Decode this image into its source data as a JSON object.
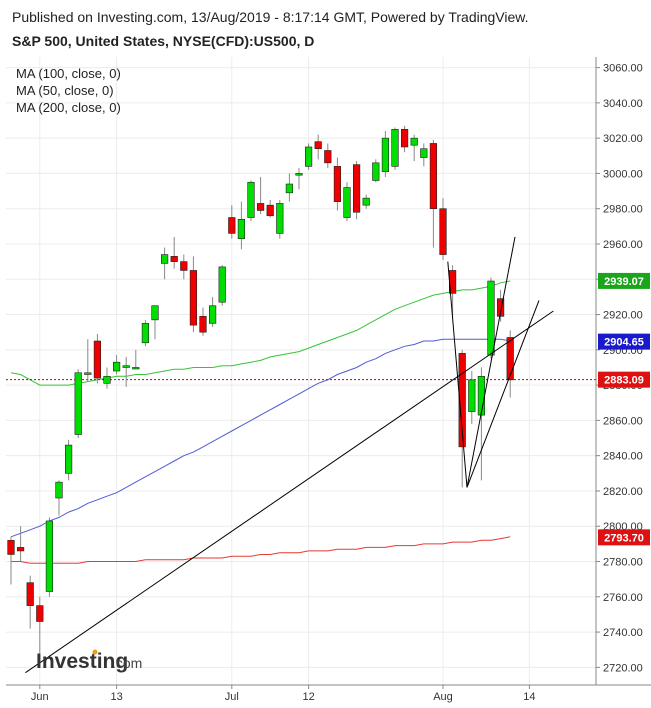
{
  "header": {
    "published": "Published on Investing.com, 13/Aug/2019 - 8:17:14 GMT, Powered by TradingView.",
    "symbol": "S&P 500, United States, NYSE(CFD):US500, D"
  },
  "legend": [
    "MA (100, close, 0)",
    "MA (50, close, 0)",
    "MA (200, close, 0)"
  ],
  "logo": {
    "text_main": "Investing",
    "text_suffix": ".com"
  },
  "chart_data": {
    "type": "candlestick",
    "title": "S&P 500, United States, NYSE(CFD):US500, D",
    "ylim": [
      2710,
      3066
    ],
    "y_ticks": [
      2720,
      2740,
      2760,
      2780,
      2800,
      2820,
      2840,
      2860,
      2880,
      2900,
      2920,
      2940,
      2960,
      2980,
      3000,
      3020,
      3040,
      3060
    ],
    "y_tick_labels": [
      "2720.00",
      "2740.00",
      "2760.00",
      "2780.00",
      "2800.00",
      "2820.00",
      "2840.00",
      "2860.00",
      "2880.00",
      "2900.00",
      "2920.00",
      "2940.00",
      "2960.00",
      "2980.00",
      "3000.00",
      "3020.00",
      "3040.00",
      "3060.00"
    ],
    "x_ticks": [
      {
        "label": "Jun",
        "bar": 3
      },
      {
        "label": "13",
        "bar": 11
      },
      {
        "label": "Jul",
        "bar": 23
      },
      {
        "label": "12",
        "bar": 31
      },
      {
        "label": "Aug",
        "bar": 45
      },
      {
        "label": "14",
        "bar": 54
      }
    ],
    "candles": [
      {
        "o": 2792,
        "h": 2794,
        "l": 2767,
        "c": 2784
      },
      {
        "o": 2788,
        "h": 2800,
        "l": 2780,
        "c": 2786
      },
      {
        "o": 2768,
        "h": 2772,
        "l": 2742,
        "c": 2755
      },
      {
        "o": 2755,
        "h": 2760,
        "l": 2728,
        "c": 2746
      },
      {
        "o": 2763,
        "h": 2805,
        "l": 2760,
        "c": 2803
      },
      {
        "o": 2816,
        "h": 2826,
        "l": 2806,
        "c": 2825
      },
      {
        "o": 2830,
        "h": 2849,
        "l": 2826,
        "c": 2846
      },
      {
        "o": 2852,
        "h": 2889,
        "l": 2850,
        "c": 2887
      },
      {
        "o": 2886,
        "h": 2906,
        "l": 2882,
        "c": 2887
      },
      {
        "o": 2905,
        "h": 2909,
        "l": 2881,
        "c": 2884
      },
      {
        "o": 2881,
        "h": 2890,
        "l": 2878,
        "c": 2885
      },
      {
        "o": 2888,
        "h": 2897,
        "l": 2886,
        "c": 2893
      },
      {
        "o": 2890,
        "h": 2896,
        "l": 2879,
        "c": 2891
      },
      {
        "o": 2890,
        "h": 2900,
        "l": 2889,
        "c": 2890
      },
      {
        "o": 2904,
        "h": 2917,
        "l": 2902,
        "c": 2915
      },
      {
        "o": 2917,
        "h": 2925,
        "l": 2906,
        "c": 2925
      },
      {
        "o": 2949,
        "h": 2958,
        "l": 2940,
        "c": 2954
      },
      {
        "o": 2953,
        "h": 2964,
        "l": 2946,
        "c": 2950
      },
      {
        "o": 2950,
        "h": 2954,
        "l": 2940,
        "c": 2945
      },
      {
        "o": 2945,
        "h": 2953,
        "l": 2910,
        "c": 2914
      },
      {
        "o": 2919,
        "h": 2924,
        "l": 2908,
        "c": 2910
      },
      {
        "o": 2915,
        "h": 2930,
        "l": 2913,
        "c": 2925
      },
      {
        "o": 2927,
        "h": 2948,
        "l": 2925,
        "c": 2947
      },
      {
        "o": 2975,
        "h": 2982,
        "l": 2963,
        "c": 2966
      },
      {
        "o": 2963,
        "h": 2984,
        "l": 2957,
        "c": 2974
      },
      {
        "o": 2975,
        "h": 2996,
        "l": 2973,
        "c": 2995
      },
      {
        "o": 2983,
        "h": 2998,
        "l": 2977,
        "c": 2979
      },
      {
        "o": 2982,
        "h": 2985,
        "l": 2975,
        "c": 2976
      },
      {
        "o": 2966,
        "h": 2985,
        "l": 2963,
        "c": 2983
      },
      {
        "o": 2989,
        "h": 3000,
        "l": 2984,
        "c": 2994
      },
      {
        "o": 2999,
        "h": 3003,
        "l": 2991,
        "c": 3000
      },
      {
        "o": 3004,
        "h": 3017,
        "l": 3002,
        "c": 3015
      },
      {
        "o": 3018,
        "h": 3022,
        "l": 3008,
        "c": 3014
      },
      {
        "o": 3013,
        "h": 3017,
        "l": 3003,
        "c": 3006
      },
      {
        "o": 3004,
        "h": 3009,
        "l": 2979,
        "c": 2984
      },
      {
        "o": 2975,
        "h": 2995,
        "l": 2973,
        "c": 2992
      },
      {
        "o": 3005,
        "h": 3007,
        "l": 2974,
        "c": 2978
      },
      {
        "o": 2982,
        "h": 2988,
        "l": 2980,
        "c": 2986
      },
      {
        "o": 2996,
        "h": 3008,
        "l": 2995,
        "c": 3006
      },
      {
        "o": 3001,
        "h": 3024,
        "l": 2998,
        "c": 3020
      },
      {
        "o": 3004,
        "h": 3026,
        "l": 3002,
        "c": 3025
      },
      {
        "o": 3025,
        "h": 3027,
        "l": 3012,
        "c": 3015
      },
      {
        "o": 3016,
        "h": 3022,
        "l": 3007,
        "c": 3020
      },
      {
        "o": 3009,
        "h": 3017,
        "l": 3004,
        "c": 3014
      },
      {
        "o": 3017,
        "h": 3019,
        "l": 2958,
        "c": 2980
      },
      {
        "o": 2980,
        "h": 2986,
        "l": 2951,
        "c": 2954
      },
      {
        "o": 2945,
        "h": 2948,
        "l": 2918,
        "c": 2932
      },
      {
        "o": 2898,
        "h": 2900,
        "l": 2822,
        "c": 2845
      },
      {
        "o": 2865,
        "h": 2888,
        "l": 2858,
        "c": 2883
      },
      {
        "o": 2863,
        "h": 2890,
        "l": 2826,
        "c": 2885
      },
      {
        "o": 2897,
        "h": 2941,
        "l": 2895,
        "c": 2939
      },
      {
        "o": 2929,
        "h": 2934,
        "l": 2916,
        "c": 2919
      },
      {
        "o": 2907,
        "h": 2911,
        "l": 2873,
        "c": 2883
      }
    ],
    "moving_averages": [
      {
        "name": "MA (100, close, 0)",
        "color": "#4f5bd5",
        "values": [
          2794,
          2796,
          2798,
          2800,
          2803,
          2805,
          2808,
          2810,
          2813,
          2815,
          2817,
          2819,
          2822,
          2825,
          2828,
          2831,
          2834,
          2837,
          2840,
          2842,
          2845,
          2848,
          2851,
          2854,
          2857,
          2860,
          2863,
          2866,
          2869,
          2872,
          2875,
          2878,
          2881,
          2883,
          2886,
          2888,
          2890,
          2893,
          2895,
          2898,
          2900,
          2902,
          2903,
          2905,
          2905,
          2906,
          2906,
          2906,
          2906,
          2906,
          2906,
          2906,
          2905
        ]
      },
      {
        "name": "MA (50, close, 0)",
        "color": "#35c535",
        "values": [
          2887,
          2886,
          2883,
          2880,
          2880,
          2880,
          2880,
          2881,
          2882,
          2883,
          2884,
          2885,
          2885,
          2886,
          2886,
          2887,
          2888,
          2889,
          2889,
          2890,
          2890,
          2890,
          2891,
          2891,
          2892,
          2893,
          2894,
          2896,
          2897,
          2898,
          2899,
          2901,
          2903,
          2905,
          2907,
          2909,
          2911,
          2914,
          2917,
          2920,
          2923,
          2925,
          2927,
          2929,
          2931,
          2932,
          2933,
          2934,
          2934,
          2935,
          2936,
          2938,
          2939
        ]
      },
      {
        "name": "MA (200, close, 0)",
        "color": "#e53935",
        "values": [
          2780,
          2780,
          2779,
          2779,
          2779,
          2779,
          2779,
          2779,
          2780,
          2780,
          2780,
          2780,
          2780,
          2780,
          2781,
          2781,
          2781,
          2781,
          2781,
          2782,
          2782,
          2782,
          2782,
          2783,
          2783,
          2783,
          2784,
          2784,
          2785,
          2785,
          2785,
          2786,
          2786,
          2786,
          2787,
          2787,
          2787,
          2788,
          2788,
          2788,
          2789,
          2789,
          2789,
          2790,
          2790,
          2790,
          2791,
          2791,
          2791,
          2792,
          2792,
          2793,
          2794
        ]
      }
    ],
    "trendlines": [
      {
        "from": {
          "bar": 1.5,
          "y": 2717
        },
        "to": {
          "bar": 56.5,
          "y": 2922
        },
        "color": "#000000"
      },
      {
        "from": {
          "bar": 45.5,
          "y": 2950
        },
        "to": {
          "bar": 47.5,
          "y": 2822
        },
        "color": "#000000"
      },
      {
        "from": {
          "bar": 47.5,
          "y": 2822
        },
        "to": {
          "bar": 52.5,
          "y": 2964
        },
        "color": "#000000"
      },
      {
        "from": {
          "bar": 47.5,
          "y": 2822
        },
        "to": {
          "bar": 55,
          "y": 2928
        },
        "color": "#000000"
      }
    ],
    "current_price_line": {
      "value": 2883.09,
      "color": "#cc0000"
    },
    "price_badges": [
      {
        "label": "2939.07",
        "value": 2939.07,
        "color": "#1aa51a"
      },
      {
        "label": "2904.65",
        "value": 2904.65,
        "color": "#1a1acc"
      },
      {
        "label": "2883.09",
        "value": 2883.09,
        "color": "#dd1111"
      },
      {
        "label": "2793.70",
        "value": 2793.7,
        "color": "#dd1111"
      }
    ],
    "colors": {
      "up": "#00dd00",
      "down": "#ee0000",
      "wick": "#888888",
      "grid": "#ececec",
      "axis": "#888888"
    }
  }
}
